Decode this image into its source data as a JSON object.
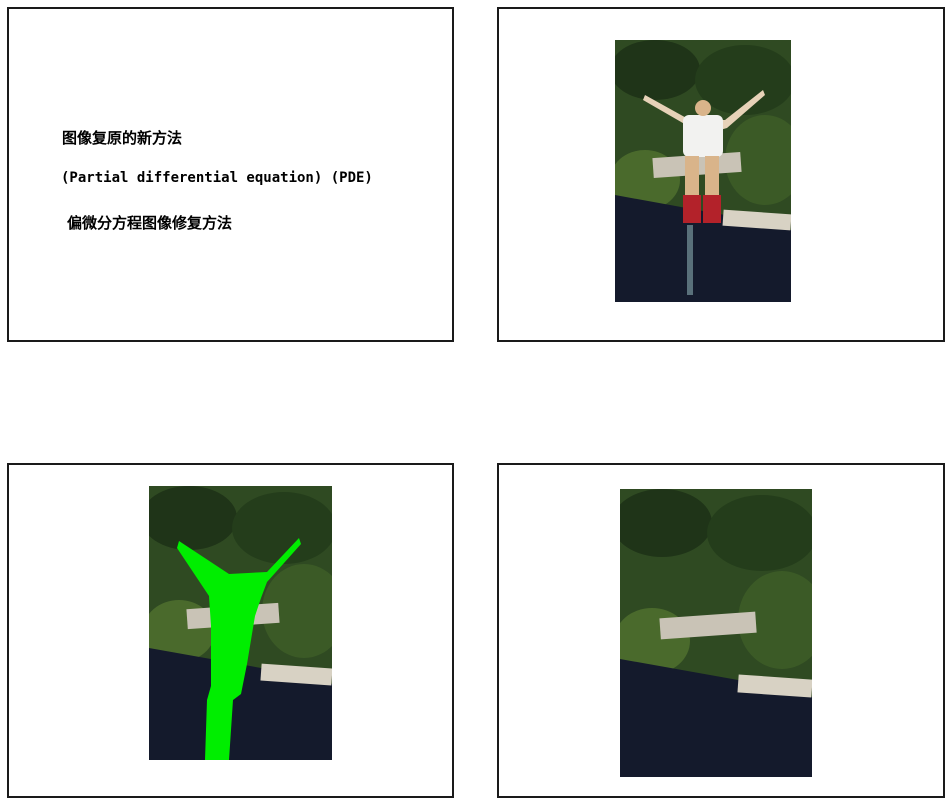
{
  "slides": [
    {
      "lines": [
        "图像复原的新方法",
        "(Partial differential equation) (PDE)",
        "偏微分方程图像修复方法"
      ]
    },
    {
      "image": "photo-bungee-jumper-original"
    },
    {
      "image": "photo-inpainting-mask-green"
    },
    {
      "image": "photo-inpainted-result"
    }
  ],
  "colors": {
    "mask_green": "#00ee00",
    "water": "#141a2c",
    "foliage": "#2f4a22",
    "dock": "#c9c3b6",
    "border": "#1a1a1a"
  }
}
